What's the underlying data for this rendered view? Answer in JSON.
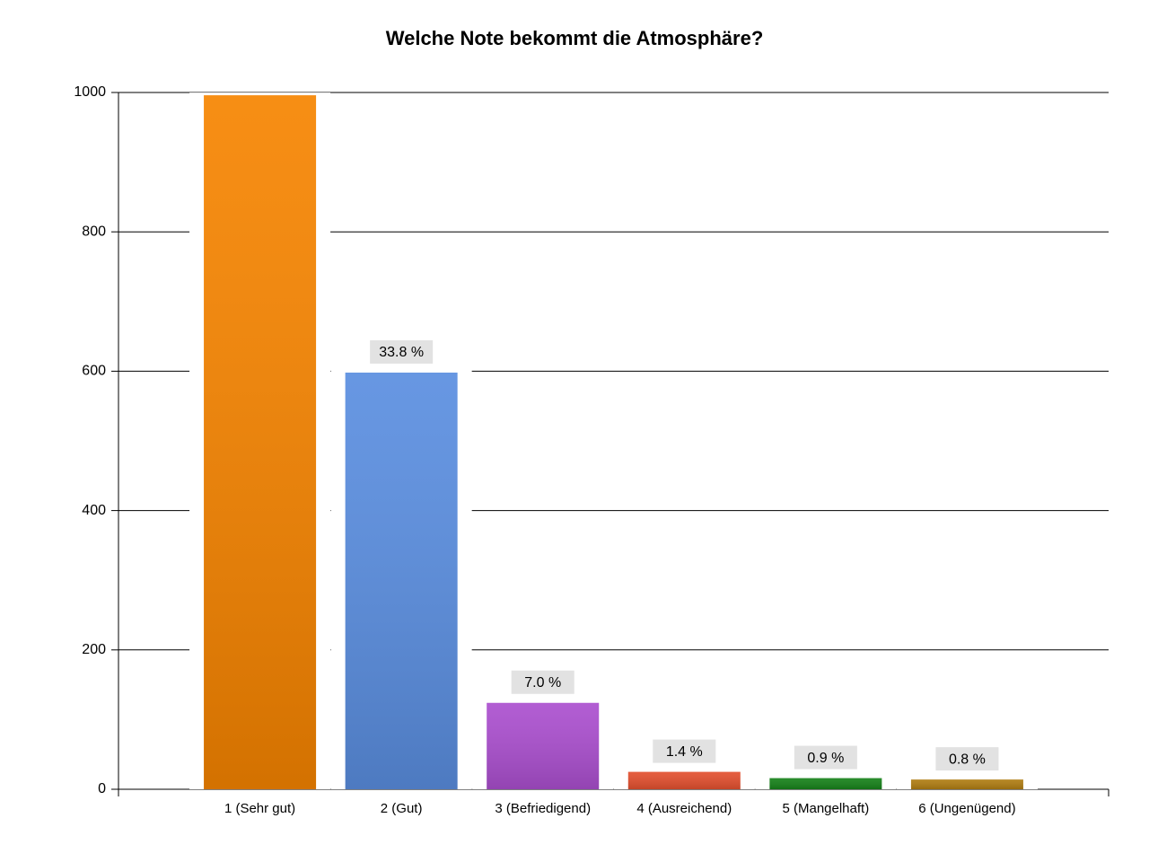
{
  "chart_data": {
    "type": "bar",
    "title": "Welche Note bekommt die Atmosphäre?",
    "categories": [
      "1 (Sehr gut)",
      "2 (Gut)",
      "3 (Befriedigend)",
      "4 (Ausreichend)",
      "5 (Mangelhaft)",
      "6 (Ungenügend)"
    ],
    "values": [
      996,
      598,
      124,
      25,
      16,
      14
    ],
    "percent_values": [
      null,
      33.8,
      7.0,
      1.4,
      0.9,
      0.8
    ],
    "percent_labels": [
      null,
      "33.8 %",
      "7.0 %",
      "1.4 %",
      "0.9 %",
      "0.8 %"
    ],
    "colors": [
      "#f68400",
      "#5a8ee0",
      "#ab4fcf",
      "#e3502f",
      "#17821a",
      "#b07d12"
    ],
    "ylim": [
      0,
      1000
    ],
    "yticks": [
      0,
      200,
      400,
      600,
      800,
      1000
    ],
    "grid": true
  }
}
